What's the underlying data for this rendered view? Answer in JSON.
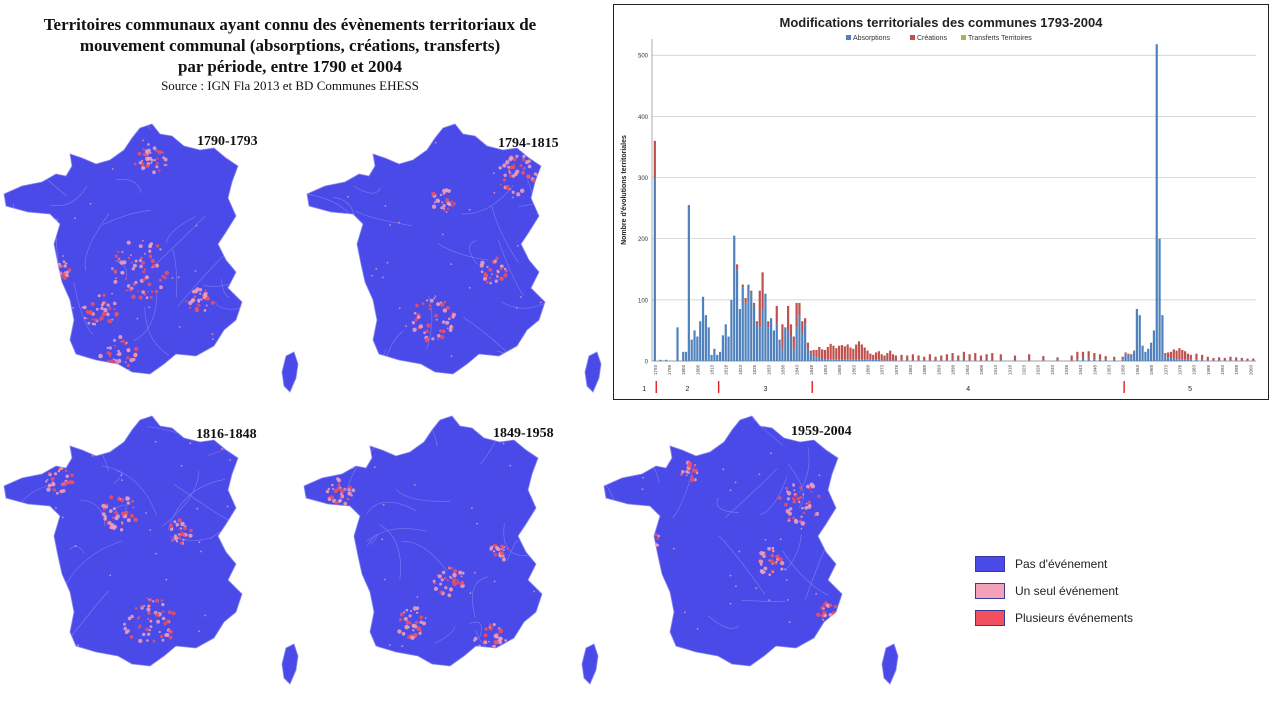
{
  "title": {
    "line1": "Territoires communaux ayant connu des évènements territoriaux de",
    "line2": "mouvement communal (absorptions, créations, transferts)",
    "line3": "par période, entre 1790 et 2004",
    "source": "Source : IGN Fla 2013 et BD Communes EHESS"
  },
  "maps": [
    {
      "label": "1790-1793"
    },
    {
      "label": "1794-1815"
    },
    {
      "label": "1816-1848"
    },
    {
      "label": "1849-1958"
    },
    {
      "label": "1959-2004"
    }
  ],
  "map_legend": [
    {
      "label": "Pas d'événement",
      "color": "#4a4ae8"
    },
    {
      "label": "Un seul événement",
      "color": "#f4a0b8"
    },
    {
      "label": "Plusieurs événements",
      "color": "#f05060"
    }
  ],
  "colors": {
    "absorptions": "#4f81bd",
    "creations": "#c0504d",
    "transferts": "#9bbb59",
    "map_base": "#4a4ae8",
    "map_border": "#8a8af0",
    "period_marker": "#e02020"
  },
  "chart_data": {
    "type": "bar",
    "title": "Modifications territoriales des communes 1793-2004",
    "ylabel": "Nombre d'évolutions territoriales",
    "ylim": [
      0,
      520
    ],
    "yticks": [
      0,
      100,
      200,
      300,
      400,
      500
    ],
    "grid": true,
    "legend_position": "top",
    "series_names": [
      "Absorptions",
      "Créations",
      "Transferts Territoires"
    ],
    "x_tick_labels": [
      "1793",
      "1798",
      "1803",
      "1808",
      "1813",
      "1818",
      "1823",
      "1828",
      "1833",
      "1838",
      "1843",
      "1848",
      "1853",
      "1858",
      "1863",
      "1868",
      "1873",
      "1878",
      "1883",
      "1888",
      "1893",
      "1898",
      "1903",
      "1908",
      "1913",
      "1918",
      "1923",
      "1928",
      "1933",
      "1938",
      "1943",
      "1948",
      "1953",
      "1958",
      "1963",
      "1968",
      "1973",
      "1978",
      "1983",
      "1988",
      "1993",
      "1998",
      "2003"
    ],
    "period_numbers": [
      "1",
      "2",
      "3",
      "4",
      "5"
    ],
    "period_boundaries": [
      1793.5,
      1815.5,
      1848.5,
      1958.5
    ],
    "years": [
      1793,
      1795,
      1797,
      1799,
      1801,
      1802,
      1803,
      1804,
      1805,
      1806,
      1807,
      1808,
      1809,
      1810,
      1811,
      1812,
      1813,
      1814,
      1815,
      1816,
      1817,
      1818,
      1819,
      1820,
      1821,
      1822,
      1823,
      1824,
      1825,
      1826,
      1827,
      1828,
      1829,
      1830,
      1831,
      1832,
      1833,
      1834,
      1835,
      1836,
      1837,
      1838,
      1839,
      1840,
      1841,
      1842,
      1843,
      1844,
      1845,
      1846,
      1847,
      1848,
      1849,
      1850,
      1851,
      1852,
      1853,
      1854,
      1855,
      1856,
      1857,
      1858,
      1859,
      1860,
      1861,
      1862,
      1863,
      1864,
      1865,
      1866,
      1867,
      1868,
      1869,
      1870,
      1871,
      1872,
      1873,
      1874,
      1875,
      1876,
      1877,
      1878,
      1880,
      1882,
      1884,
      1886,
      1888,
      1890,
      1892,
      1894,
      1896,
      1898,
      1900,
      1902,
      1904,
      1906,
      1908,
      1910,
      1912,
      1915,
      1920,
      1925,
      1930,
      1935,
      1940,
      1942,
      1944,
      1946,
      1948,
      1950,
      1952,
      1955,
      1958,
      1959,
      1960,
      1961,
      1962,
      1963,
      1964,
      1965,
      1966,
      1967,
      1968,
      1969,
      1970,
      1971,
      1972,
      1973,
      1974,
      1975,
      1976,
      1977,
      1978,
      1979,
      1980,
      1981,
      1982,
      1984,
      1986,
      1988,
      1990,
      1992,
      1994,
      1996,
      1998,
      2000,
      2002,
      2004
    ],
    "absorptions": [
      300,
      2,
      2,
      0,
      55,
      0,
      15,
      15,
      255,
      35,
      50,
      40,
      65,
      105,
      75,
      55,
      10,
      20,
      10,
      15,
      42,
      60,
      40,
      100,
      205,
      150,
      85,
      120,
      95,
      125,
      110,
      90,
      60,
      55,
      85,
      110,
      55,
      70,
      50,
      60,
      35,
      20,
      55,
      50,
      40,
      20,
      55,
      75,
      45,
      60,
      20,
      12,
      8,
      6,
      5,
      4,
      3,
      3,
      3,
      3,
      3,
      3,
      2,
      2,
      2,
      2,
      2,
      2,
      2,
      2,
      2,
      2,
      2,
      2,
      2,
      2,
      1,
      1,
      1,
      1,
      1,
      1,
      1,
      1,
      1,
      1,
      1,
      1,
      1,
      1,
      1,
      1,
      1,
      1,
      1,
      1,
      1,
      1,
      1,
      1,
      1,
      1,
      1,
      1,
      1,
      3,
      5,
      4,
      3,
      3,
      2,
      2,
      3,
      12,
      10,
      9,
      15,
      85,
      75,
      25,
      15,
      20,
      30,
      50,
      518,
      200,
      75,
      8,
      6,
      5,
      4,
      3,
      3,
      2,
      2,
      2,
      2,
      2,
      2,
      1,
      1,
      1,
      1,
      1,
      1,
      1,
      1,
      1,
      1,
      1
    ],
    "creations": [
      60,
      0,
      0,
      0,
      0,
      0,
      0,
      0,
      0,
      0,
      0,
      0,
      0,
      0,
      0,
      0,
      0,
      0,
      0,
      0,
      0,
      0,
      0,
      0,
      0,
      8,
      0,
      5,
      8,
      0,
      5,
      5,
      5,
      60,
      60,
      0,
      10,
      0,
      0,
      30,
      0,
      40,
      0,
      40,
      20,
      20,
      40,
      20,
      20,
      10,
      10,
      5,
      10,
      12,
      18,
      15,
      15,
      20,
      25,
      22,
      18,
      22,
      24,
      22,
      25,
      20,
      18,
      25,
      30,
      25,
      20,
      15,
      10,
      8,
      12,
      14,
      10,
      8,
      12,
      16,
      10,
      8,
      9,
      8,
      10,
      8,
      6,
      10,
      6,
      8,
      10,
      12,
      8,
      14,
      10,
      12,
      8,
      10,
      12,
      10,
      8,
      10,
      7,
      5,
      8,
      12,
      10,
      12,
      10,
      8,
      6,
      5,
      4,
      2,
      2,
      2,
      2,
      0,
      0,
      0,
      0,
      0,
      0,
      0,
      0,
      0,
      0,
      5,
      8,
      10,
      15,
      14,
      18,
      16,
      14,
      10,
      8,
      10,
      8,
      6,
      4,
      5,
      4,
      6,
      5,
      4,
      3,
      3,
      4,
      3
    ],
    "transferts": []
  }
}
